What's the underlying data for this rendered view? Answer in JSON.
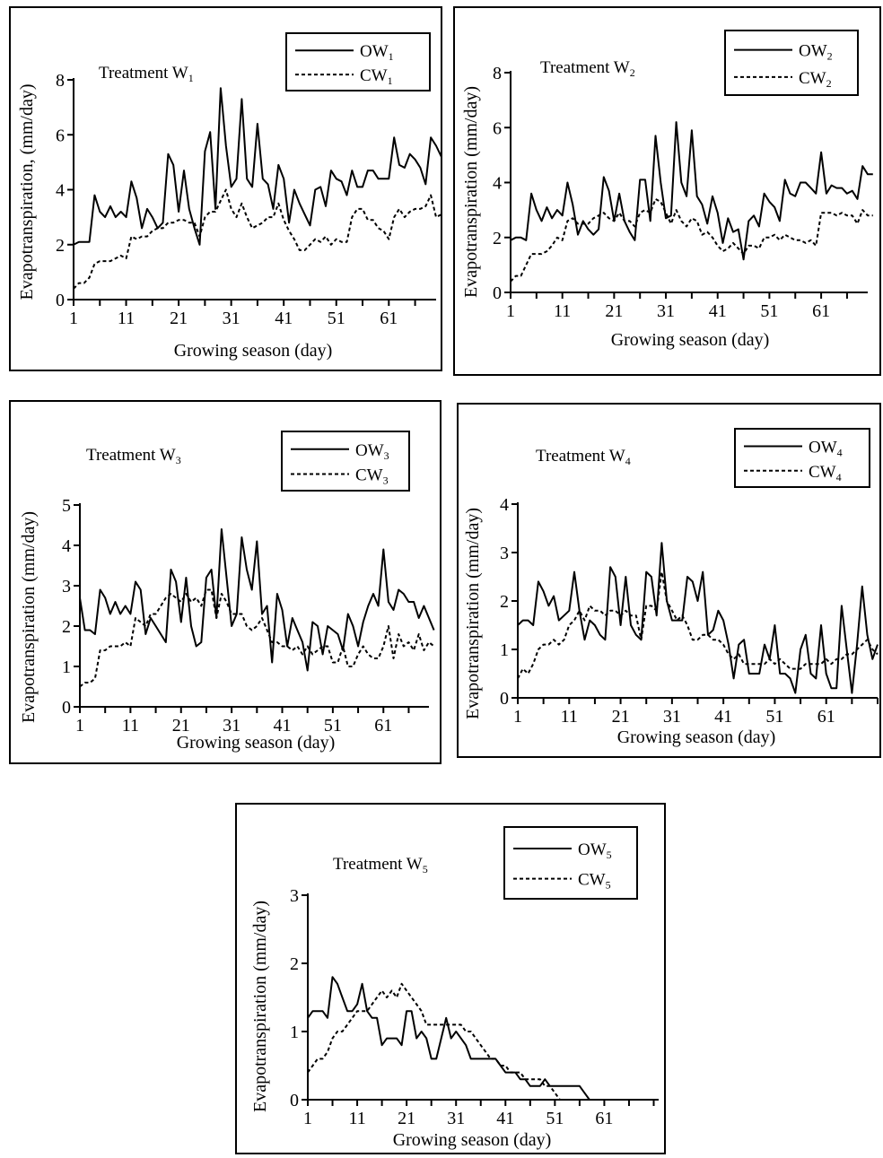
{
  "chart_data": [
    {
      "type": "line",
      "title": "Treatment W",
      "title_sub": "1",
      "xlabel": "Growing season (day)",
      "ylabel": "Evapotranspiration, (mm/day)",
      "xticks": [
        1,
        11,
        21,
        31,
        41,
        51,
        61
      ],
      "xlim": [
        1,
        70
      ],
      "yticks": [
        0,
        2,
        4,
        6,
        8
      ],
      "ylim": [
        0,
        8
      ],
      "legend_position": "top-right",
      "series": [
        {
          "name": "OW",
          "name_sub": "1",
          "style": "solid",
          "values": [
            2.0,
            2.1,
            2.1,
            2.1,
            3.8,
            3.2,
            3.0,
            3.4,
            3.0,
            3.2,
            3.0,
            4.3,
            3.7,
            2.6,
            3.3,
            3.0,
            2.6,
            2.8,
            5.3,
            4.9,
            3.2,
            4.7,
            3.3,
            2.6,
            2.0,
            5.4,
            6.1,
            3.3,
            7.7,
            5.6,
            4.1,
            4.4,
            7.3,
            4.4,
            4.1,
            6.4,
            4.4,
            4.2,
            3.3,
            4.9,
            4.4,
            2.8,
            4.0,
            3.5,
            3.1,
            2.7,
            4.0,
            4.1,
            3.4,
            4.7,
            4.4,
            4.3,
            3.8,
            4.7,
            4.1,
            4.1,
            4.7,
            4.7,
            4.4,
            4.4,
            4.4,
            5.9,
            4.9,
            4.8,
            5.3,
            5.1,
            4.8,
            4.2,
            5.9,
            5.6,
            5.2
          ]
        },
        {
          "name": "CW",
          "name_sub": "1",
          "style": "dashed",
          "values": [
            0.4,
            0.6,
            0.6,
            0.8,
            1.3,
            1.4,
            1.4,
            1.4,
            1.5,
            1.6,
            1.5,
            2.3,
            2.2,
            2.3,
            2.3,
            2.5,
            2.6,
            2.6,
            2.8,
            2.8,
            2.9,
            2.9,
            2.8,
            2.8,
            2.3,
            3.0,
            3.2,
            3.2,
            3.6,
            4.0,
            3.3,
            3.0,
            3.5,
            3.0,
            2.6,
            2.7,
            2.8,
            3.0,
            3.0,
            3.5,
            2.9,
            2.5,
            2.2,
            1.8,
            1.8,
            2.0,
            2.2,
            2.1,
            2.3,
            2.0,
            2.2,
            2.1,
            2.1,
            3.0,
            3.3,
            3.3,
            2.9,
            2.9,
            2.6,
            2.5,
            2.2,
            3.0,
            3.3,
            3.0,
            3.2,
            3.3,
            3.3,
            3.4,
            3.8,
            3.0,
            3.1
          ]
        }
      ]
    },
    {
      "type": "line",
      "title": "Treatment W",
      "title_sub": "2",
      "xlabel": "Growing season (day)",
      "ylabel": "Evapotranspiration (mm/day)",
      "xticks": [
        1,
        11,
        21,
        31,
        41,
        51,
        61
      ],
      "xlim": [
        1,
        70
      ],
      "yticks": [
        0,
        2,
        4,
        6,
        8
      ],
      "ylim": [
        0,
        8
      ],
      "legend_position": "top-right",
      "series": [
        {
          "name": "OW",
          "name_sub": "2",
          "style": "solid",
          "values": [
            1.9,
            2.0,
            2.0,
            1.9,
            3.6,
            3.0,
            2.6,
            3.1,
            2.7,
            3.0,
            2.8,
            4.0,
            3.2,
            2.1,
            2.6,
            2.3,
            2.1,
            2.3,
            4.2,
            3.7,
            2.6,
            3.6,
            2.6,
            2.2,
            1.9,
            4.1,
            4.1,
            2.6,
            5.7,
            4.0,
            2.7,
            2.8,
            6.2,
            4.0,
            3.5,
            5.9,
            3.5,
            3.2,
            2.5,
            3.5,
            2.9,
            1.8,
            2.7,
            2.2,
            2.3,
            1.2,
            2.6,
            2.8,
            2.4,
            3.6,
            3.3,
            3.1,
            2.6,
            4.1,
            3.6,
            3.5,
            4.0,
            4.0,
            3.8,
            3.6,
            5.1,
            3.6,
            3.9,
            3.8,
            3.8,
            3.6,
            3.7,
            3.4,
            4.6,
            4.3,
            4.3
          ]
        },
        {
          "name": "CW",
          "name_sub": "2",
          "style": "dashed",
          "values": [
            0.4,
            0.6,
            0.6,
            1.0,
            1.4,
            1.4,
            1.4,
            1.5,
            1.7,
            2.0,
            1.9,
            2.6,
            2.7,
            2.5,
            2.5,
            2.5,
            2.7,
            2.8,
            2.9,
            2.7,
            2.6,
            2.9,
            2.6,
            2.6,
            2.4,
            2.9,
            3.0,
            2.9,
            3.4,
            3.3,
            2.9,
            2.5,
            3.0,
            2.6,
            2.4,
            2.7,
            2.6,
            2.1,
            2.2,
            2.0,
            1.7,
            1.5,
            1.6,
            1.8,
            1.6,
            1.4,
            1.7,
            1.7,
            1.6,
            2.0,
            2.0,
            2.1,
            1.9,
            2.1,
            2.0,
            1.9,
            1.9,
            1.8,
            1.9,
            1.7,
            2.9,
            2.9,
            2.9,
            2.8,
            2.9,
            2.8,
            2.8,
            2.5,
            3.0,
            2.8,
            2.8
          ]
        }
      ]
    },
    {
      "type": "line",
      "title": "Treatment W",
      "title_sub": "3",
      "xlabel": "Growing season (day)",
      "ylabel": "Evapotranspiration (mm/day)",
      "xticks": [
        1,
        11,
        21,
        31,
        41,
        51,
        61
      ],
      "xlim": [
        1,
        70
      ],
      "yticks": [
        0,
        1,
        2,
        3,
        4,
        5
      ],
      "ylim": [
        0,
        5
      ],
      "legend_position": "top-right",
      "series": [
        {
          "name": "OW",
          "name_sub": "3",
          "style": "solid",
          "values": [
            2.7,
            1.9,
            1.9,
            1.8,
            2.9,
            2.7,
            2.3,
            2.6,
            2.3,
            2.5,
            2.3,
            3.1,
            2.9,
            1.8,
            2.2,
            2.0,
            1.8,
            1.6,
            3.4,
            3.1,
            2.1,
            3.2,
            2.0,
            1.5,
            1.6,
            3.2,
            3.4,
            2.2,
            4.4,
            3.2,
            2.0,
            2.3,
            4.2,
            3.4,
            2.9,
            4.1,
            2.3,
            2.5,
            1.1,
            2.8,
            2.4,
            1.5,
            2.2,
            1.9,
            1.6,
            0.9,
            2.1,
            2.0,
            1.3,
            2.0,
            1.9,
            1.8,
            1.4,
            2.3,
            2.0,
            1.5,
            2.1,
            2.5,
            2.8,
            2.5,
            3.9,
            2.6,
            2.4,
            2.9,
            2.8,
            2.6,
            2.6,
            2.2,
            2.5,
            2.2,
            1.9
          ]
        },
        {
          "name": "CW",
          "name_sub": "3",
          "style": "dashed",
          "values": [
            0.5,
            0.6,
            0.6,
            0.7,
            1.4,
            1.4,
            1.5,
            1.5,
            1.5,
            1.6,
            1.5,
            2.2,
            2.1,
            2.0,
            2.3,
            2.3,
            2.5,
            2.7,
            2.8,
            2.7,
            2.6,
            2.8,
            2.6,
            2.7,
            2.5,
            2.9,
            2.9,
            2.2,
            2.8,
            2.6,
            2.3,
            2.3,
            2.3,
            2.0,
            1.9,
            2.0,
            2.2,
            1.9,
            1.6,
            1.6,
            1.5,
            1.5,
            1.4,
            1.5,
            1.3,
            1.5,
            1.3,
            1.4,
            1.5,
            1.5,
            1.1,
            1.1,
            1.5,
            1.0,
            1.0,
            1.3,
            1.5,
            1.3,
            1.2,
            1.2,
            1.5,
            2.0,
            1.2,
            1.8,
            1.5,
            1.6,
            1.4,
            1.8,
            1.4,
            1.6,
            1.5
          ]
        }
      ]
    },
    {
      "type": "line",
      "title": "Treatment W",
      "title_sub": "4",
      "xlabel": "Growing season (day)",
      "ylabel": "Evapotranspiration (mm/day)",
      "xticks": [
        1,
        11,
        21,
        31,
        41,
        51,
        61
      ],
      "xlim": [
        1,
        71
      ],
      "yticks": [
        0,
        1,
        2,
        3,
        4
      ],
      "ylim": [
        0,
        4
      ],
      "legend_position": "top-right",
      "series": [
        {
          "name": "OW",
          "name_sub": "4",
          "style": "solid",
          "values": [
            1.5,
            1.6,
            1.6,
            1.5,
            2.4,
            2.2,
            1.9,
            2.1,
            1.6,
            1.7,
            1.8,
            2.6,
            1.8,
            1.2,
            1.6,
            1.5,
            1.3,
            1.2,
            2.7,
            2.5,
            1.5,
            2.5,
            1.5,
            1.3,
            1.2,
            2.6,
            2.5,
            1.7,
            3.2,
            2.0,
            1.6,
            1.6,
            1.6,
            2.5,
            2.4,
            2.0,
            2.6,
            1.3,
            1.4,
            1.8,
            1.6,
            1.1,
            0.4,
            1.1,
            1.2,
            0.5,
            0.5,
            0.5,
            1.1,
            0.8,
            1.5,
            0.5,
            0.5,
            0.4,
            0.1,
            1.0,
            1.3,
            0.5,
            0.4,
            1.5,
            0.5,
            0.2,
            0.2,
            1.9,
            1.0,
            0.1,
            1.1,
            2.3,
            1.3,
            0.8,
            1.1
          ]
        },
        {
          "name": "CW",
          "name_sub": "4",
          "style": "dashed",
          "values": [
            0.4,
            0.6,
            0.5,
            0.7,
            1.0,
            1.1,
            1.1,
            1.2,
            1.1,
            1.2,
            1.5,
            1.6,
            1.8,
            1.6,
            1.9,
            1.8,
            1.8,
            1.7,
            1.8,
            1.8,
            1.7,
            1.8,
            1.7,
            1.7,
            1.2,
            1.9,
            1.9,
            1.8,
            2.6,
            2.0,
            1.8,
            1.6,
            1.7,
            1.5,
            1.2,
            1.2,
            1.3,
            1.3,
            1.2,
            1.2,
            1.1,
            0.9,
            0.8,
            0.9,
            0.7,
            0.7,
            0.7,
            0.7,
            0.7,
            0.8,
            0.7,
            0.8,
            0.7,
            0.6,
            0.6,
            0.6,
            0.7,
            0.7,
            0.7,
            0.7,
            0.8,
            0.7,
            0.8,
            0.8,
            0.9,
            0.9,
            1.0,
            1.1,
            1.2,
            1.0,
            0.9
          ]
        }
      ]
    },
    {
      "type": "line",
      "title": "Treatment W",
      "title_sub": "5",
      "xlabel": "Growing season (day)",
      "ylabel": "Evapotranspiration (mm/day)",
      "xticks": [
        1,
        11,
        21,
        31,
        41,
        51,
        61
      ],
      "xlim": [
        1,
        72
      ],
      "yticks": [
        0,
        1,
        2,
        3
      ],
      "ylim": [
        0,
        3
      ],
      "legend_position": "top-right",
      "series": [
        {
          "name": "OW",
          "name_sub": "5",
          "style": "solid",
          "values": [
            1.2,
            1.3,
            1.3,
            1.3,
            1.2,
            1.8,
            1.7,
            1.5,
            1.3,
            1.3,
            1.4,
            1.7,
            1.3,
            1.2,
            1.2,
            0.8,
            0.9,
            0.9,
            0.9,
            0.8,
            1.3,
            1.3,
            0.9,
            1.0,
            0.9,
            0.6,
            0.6,
            0.9,
            1.2,
            0.9,
            1.0,
            0.9,
            0.8,
            0.6,
            0.6,
            0.6,
            0.6,
            0.6,
            0.6,
            0.5,
            0.4,
            0.4,
            0.4,
            0.3,
            0.3,
            0.2,
            0.2,
            0.2,
            0.3,
            0.2,
            0.2,
            0.2,
            0.2,
            0.2,
            0.2,
            0.2,
            0.1,
            0.0
          ]
        },
        {
          "name": "CW",
          "name_sub": "5",
          "style": "dashed",
          "values": [
            0.4,
            0.5,
            0.6,
            0.6,
            0.7,
            0.9,
            1.0,
            1.0,
            1.1,
            1.2,
            1.3,
            1.3,
            1.3,
            1.4,
            1.5,
            1.6,
            1.5,
            1.6,
            1.5,
            1.7,
            1.6,
            1.5,
            1.4,
            1.3,
            1.1,
            1.1,
            1.1,
            1.1,
            1.1,
            1.1,
            1.1,
            1.1,
            1.0,
            1.0,
            0.9,
            0.8,
            0.7,
            0.6,
            0.6,
            0.5,
            0.5,
            0.4,
            0.4,
            0.4,
            0.3,
            0.3,
            0.3,
            0.3,
            0.2,
            0.2,
            0.1,
            0.0
          ]
        }
      ]
    }
  ]
}
